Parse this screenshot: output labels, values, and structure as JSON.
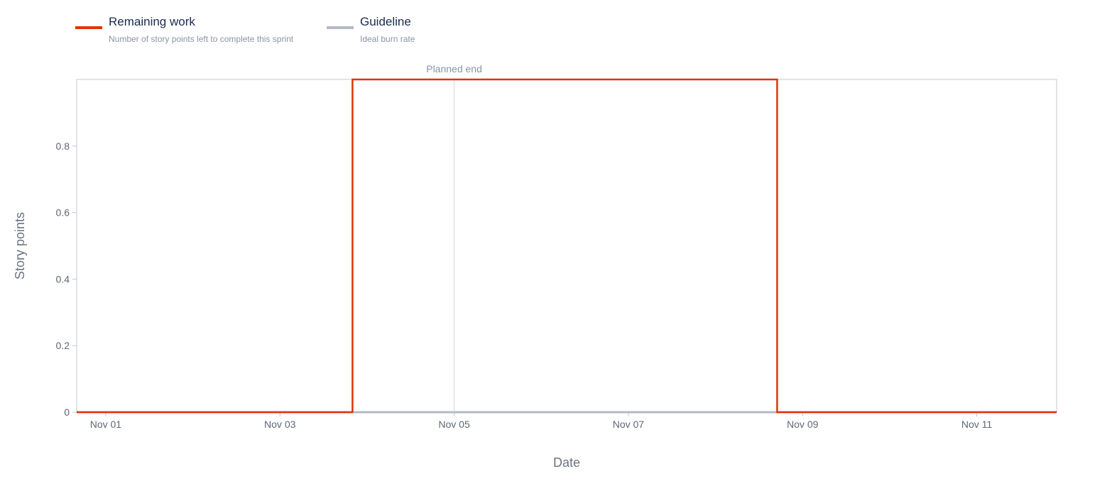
{
  "legend": {
    "items": [
      {
        "title": "Remaining work",
        "description": "Number of story points left to complete this sprint",
        "color": "#de350b"
      },
      {
        "title": "Guideline",
        "description": "Ideal burn rate",
        "color": "#b3bac5"
      }
    ]
  },
  "chart_data": {
    "type": "line",
    "xlabel": "Date",
    "ylabel": "Story points",
    "x_ticks": [
      "Nov 01",
      "Nov 03",
      "Nov 05",
      "Nov 07",
      "Nov 09",
      "Nov 11"
    ],
    "y_ticks": [
      "0",
      "0.2",
      "0.4",
      "0.6",
      "0.8"
    ],
    "xlim": [
      "2023-10-31 16:00",
      "2023-11-11 22:00"
    ],
    "ylim": [
      0,
      1
    ],
    "annotations": [
      {
        "label": "Planned end",
        "x": "2023-11-05 00:00"
      }
    ],
    "series": [
      {
        "name": "Remaining work",
        "color": "#de350b",
        "step": true,
        "points": [
          {
            "x": "2023-10-31 16:00",
            "y": 0
          },
          {
            "x": "2023-11-03 20:00",
            "y": 0
          },
          {
            "x": "2023-11-03 20:00",
            "y": 1
          },
          {
            "x": "2023-11-08 17:00",
            "y": 1
          },
          {
            "x": "2023-11-08 17:00",
            "y": 0
          },
          {
            "x": "2023-11-11 22:00",
            "y": 0
          }
        ]
      },
      {
        "name": "Guideline",
        "color": "#b3bac5",
        "points": [
          {
            "x": "2023-10-31 16:00",
            "y": 0
          },
          {
            "x": "2023-11-11 22:00",
            "y": 0
          }
        ]
      }
    ],
    "grid": false,
    "legend_position": "top-left"
  }
}
